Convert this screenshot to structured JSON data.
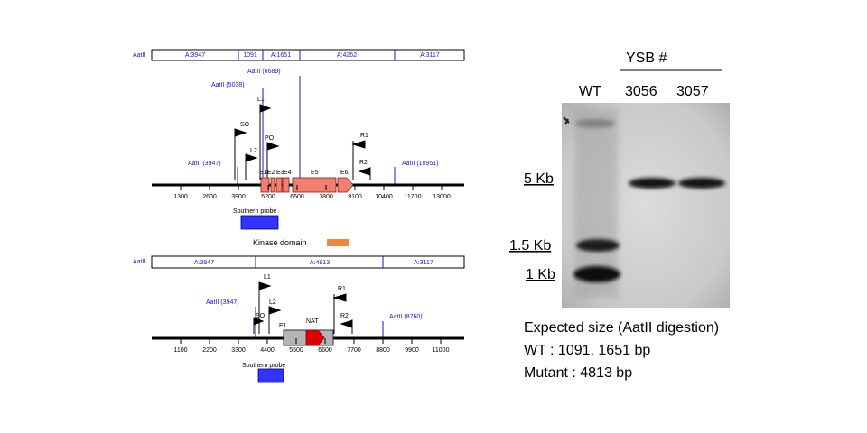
{
  "top_map": {
    "restriction_label": "AatII",
    "fragments": [
      "A:3947",
      "1091",
      "A:1651",
      "A:4262",
      "A:3117"
    ],
    "sites": [
      "AatII (6689)",
      "AatII (5038)",
      "AatII (3947)",
      "AatII (10951)"
    ],
    "primers": [
      "L1",
      "SO",
      "PO",
      "L2",
      "R1",
      "R2"
    ],
    "exons": [
      "E1",
      "E2",
      "E3",
      "E4",
      "E5",
      "E6"
    ],
    "ruler_ticks": [
      "1300",
      "2600",
      "3900",
      "5200",
      "6500",
      "7800",
      "9100",
      "10400",
      "11700",
      "13000"
    ],
    "probe_label": "Southern probe",
    "kinase_label": "Kinase domain",
    "colors": {
      "exon": "#f08070",
      "probe": "#3333ff",
      "kinase": "#f0883c",
      "site": "#1a1acd"
    }
  },
  "bottom_map": {
    "restriction_label": "AatII",
    "fragments": [
      "A:3947",
      "A:4813",
      "A:3117"
    ],
    "sites": [
      "AatII (3947)",
      "AatII (8760)"
    ],
    "primers": [
      "L1",
      "SO",
      "L2",
      "R1",
      "R2"
    ],
    "exon": "E1",
    "marker": "NAT",
    "ruler_ticks": [
      "1100",
      "2200",
      "3300",
      "4400",
      "5500",
      "6600",
      "7700",
      "8800",
      "9900",
      "11000"
    ],
    "probe_label": "Southern probe",
    "colors": {
      "nat": "#e00000",
      "box": "#b4b4b4"
    }
  },
  "blot": {
    "group_label": "YSB #",
    "lanes": [
      "WT",
      "3056",
      "3057"
    ],
    "size_markers": [
      "5 Kb",
      "1.5 Kb",
      "1 Kb"
    ]
  },
  "caption": {
    "line1": "Expected size (AatII digestion)",
    "line2": "WT : 1091, 1651 bp",
    "line3": "Mutant : 4813 bp"
  }
}
